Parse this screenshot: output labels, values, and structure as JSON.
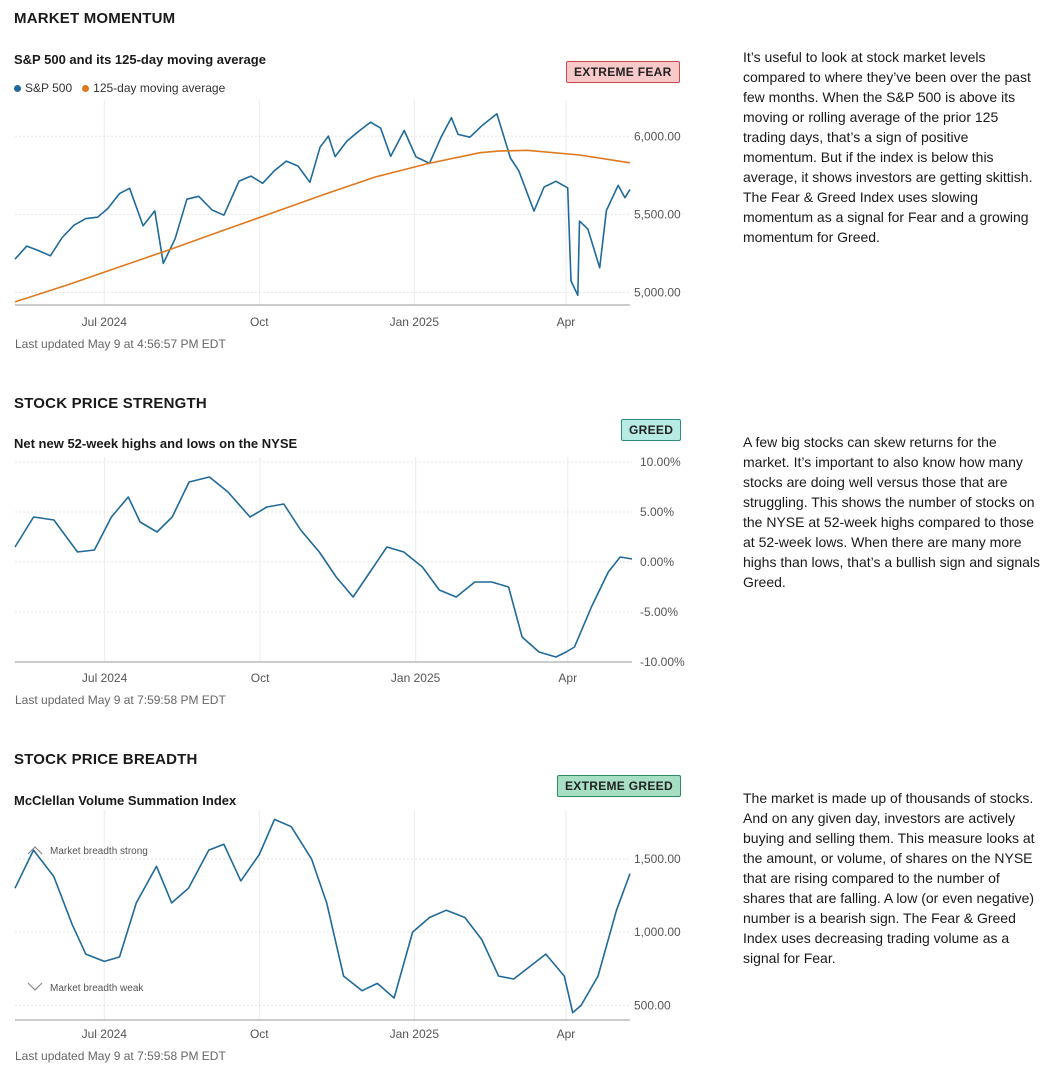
{
  "sections": [
    {
      "title": "MARKET MOMENTUM",
      "subtitle": "S&P 500 and its 125-day moving average",
      "badge": "EXTREME FEAR",
      "legend": [
        "S&P 500",
        "125-day moving average"
      ],
      "description": "It’s useful to look at stock market levels compared to where they’ve been over the past few months. When the S&P 500 is above its moving or rolling average of the prior 125 trading days, that’s a sign of positive momentum. But if the index is below this average, it shows investors are getting skittish. The Fear & Greed Index uses slowing momentum as a signal for Fear and a growing momentum for Greed.",
      "updated": "Last updated May 9 at 4:56:57 PM EDT"
    },
    {
      "title": "STOCK PRICE STRENGTH",
      "subtitle": "Net new 52-week highs and lows on the NYSE",
      "badge": "GREED",
      "description": "A few big stocks can skew returns for the market. It’s important to also know how many stocks are doing well versus those that are struggling. This shows the number of stocks on the NYSE at 52-week highs compared to those at 52-week lows. When there are many more highs than lows, that’s a bullish sign and signals Greed.",
      "updated": "Last updated May 9 at 7:59:58 PM EDT"
    },
    {
      "title": "STOCK PRICE BREADTH",
      "subtitle": "McClellan Volume Summation Index",
      "badge": "EXTREME GREED",
      "description": "The market is made up of thousands of stocks. And on any given day, investors are actively buying and selling them. This measure looks at the amount, or volume, of shares on the NYSE that are rising compared to the number of shares that are falling. A low (or even negative) number is a bearish sign. The Fear & Greed Index uses decreasing trading volume as a signal for Fear.",
      "updated": "Last updated May 9 at 7:59:58 PM EDT"
    }
  ],
  "colors": {
    "spx": "#1f6a9a",
    "ma": "#e0781e",
    "fear_bg": "#f8c9c9",
    "fear_border": "#c94a4a",
    "greed_bg": "#b7ebe4",
    "greed_border": "#2e8b7e",
    "xgreed_bg": "#a6dfc3",
    "xgreed_border": "#2e8b5e",
    "line": "#1f6a9a"
  },
  "chart_data": [
    {
      "type": "line",
      "title": "S&P 500 and its 125-day moving average",
      "x_ticks": [
        "Jul 2024",
        "Oct",
        "Jan 2025",
        "Apr"
      ],
      "y_ticks": [
        "6,000.00",
        "5,500.00",
        "5,000.00"
      ],
      "ylim": [
        4920,
        6200
      ],
      "series": [
        {
          "name": "S&P 500",
          "x": [
            "2024-05-09",
            "2024-05-16",
            "2024-05-23",
            "2024-05-30",
            "2024-06-06",
            "2024-06-13",
            "2024-06-20",
            "2024-06-27",
            "2024-07-03",
            "2024-07-10",
            "2024-07-16",
            "2024-07-24",
            "2024-07-31",
            "2024-08-05",
            "2024-08-12",
            "2024-08-19",
            "2024-08-26",
            "2024-09-03",
            "2024-09-10",
            "2024-09-19",
            "2024-09-26",
            "2024-10-03",
            "2024-10-10",
            "2024-10-17",
            "2024-10-24",
            "2024-10-31",
            "2024-11-06",
            "2024-11-11",
            "2024-11-15",
            "2024-11-22",
            "2024-11-29",
            "2024-12-06",
            "2024-12-12",
            "2024-12-18",
            "2024-12-26",
            "2025-01-02",
            "2025-01-10",
            "2025-01-17",
            "2025-01-23",
            "2025-01-27",
            "2025-02-03",
            "2025-02-10",
            "2025-02-19",
            "2025-02-27",
            "2025-03-04",
            "2025-03-13",
            "2025-03-19",
            "2025-03-26",
            "2025-04-02",
            "2025-04-04",
            "2025-04-08",
            "2025-04-09",
            "2025-04-14",
            "2025-04-21",
            "2025-04-25",
            "2025-05-02",
            "2025-05-06",
            "2025-05-09"
          ],
          "y": [
            5214,
            5297,
            5268,
            5235,
            5352,
            5431,
            5473,
            5482,
            5537,
            5633,
            5667,
            5427,
            5522,
            5186,
            5344,
            5597,
            5616,
            5528,
            5495,
            5713,
            5745,
            5699,
            5780,
            5841,
            5809,
            5705,
            5929,
            6001,
            5870,
            5969,
            6032,
            6090,
            6052,
            5872,
            6037,
            5868,
            5827,
            5997,
            6119,
            6012,
            5994,
            6066,
            6144,
            5861,
            5779,
            5521,
            5675,
            5712,
            5670,
            5074,
            4982,
            5457,
            5406,
            5158,
            5525,
            5686,
            5607,
            5660
          ]
        },
        {
          "name": "125-day moving average",
          "x": [
            "2024-05-09",
            "2024-06-09",
            "2024-07-09",
            "2024-08-09",
            "2024-09-09",
            "2024-10-09",
            "2024-11-09",
            "2024-12-09",
            "2025-01-09",
            "2025-02-09",
            "2025-02-20",
            "2025-03-09",
            "2025-04-09",
            "2025-05-09"
          ],
          "y": [
            4940,
            5048,
            5160,
            5275,
            5395,
            5510,
            5630,
            5740,
            5825,
            5895,
            5905,
            5910,
            5880,
            5830
          ]
        }
      ]
    },
    {
      "type": "line",
      "title": "Net new 52-week highs and lows on the NYSE",
      "x_ticks": [
        "Jul 2024",
        "Oct",
        "Jan 2025",
        "Apr"
      ],
      "y_ticks": [
        "10.00%",
        "5.00%",
        "0.00%",
        "-5.00%",
        "-10.00%"
      ],
      "ylim": [
        -10,
        10
      ],
      "series": [
        {
          "x": [
            "2024-05-09",
            "2024-05-20",
            "2024-06-01",
            "2024-06-15",
            "2024-06-25",
            "2024-07-05",
            "2024-07-15",
            "2024-07-22",
            "2024-08-01",
            "2024-08-10",
            "2024-08-20",
            "2024-09-01",
            "2024-09-12",
            "2024-09-25",
            "2024-10-05",
            "2024-10-15",
            "2024-10-25",
            "2024-11-05",
            "2024-11-15",
            "2024-11-25",
            "2024-12-05",
            "2024-12-15",
            "2024-12-25",
            "2025-01-05",
            "2025-01-15",
            "2025-01-25",
            "2025-02-05",
            "2025-02-15",
            "2025-02-25",
            "2025-03-05",
            "2025-03-15",
            "2025-03-25",
            "2025-03-31",
            "2025-04-05",
            "2025-04-15",
            "2025-04-25",
            "2025-05-02",
            "2025-05-09"
          ],
          "y": [
            1.5,
            4.5,
            4.2,
            1.0,
            1.2,
            4.5,
            6.5,
            4.0,
            3.0,
            4.5,
            8.0,
            8.5,
            7.0,
            4.5,
            5.5,
            5.8,
            3.2,
            1.0,
            -1.5,
            -3.5,
            -1.0,
            1.5,
            1.0,
            -0.5,
            -2.8,
            -3.5,
            -2.0,
            -2.0,
            -2.5,
            -7.5,
            -9.0,
            -9.5,
            -9.0,
            -8.5,
            -4.5,
            -1.0,
            0.5,
            0.3
          ]
        }
      ]
    },
    {
      "type": "line",
      "title": "McClellan Volume Summation Index",
      "x_ticks": [
        "Jul 2024",
        "Oct",
        "Jan 2025",
        "Apr"
      ],
      "y_ticks": [
        "1,500.00",
        "1,000.00",
        "500.00"
      ],
      "annotations": [
        "Market breadth strong",
        "Market breadth weak"
      ],
      "ylim": [
        400,
        1800
      ],
      "series": [
        {
          "x": [
            "2024-05-09",
            "2024-05-20",
            "2024-06-01",
            "2024-06-12",
            "2024-06-20",
            "2024-07-01",
            "2024-07-10",
            "2024-07-20",
            "2024-08-01",
            "2024-08-10",
            "2024-08-20",
            "2024-09-01",
            "2024-09-10",
            "2024-09-20",
            "2024-10-01",
            "2024-10-10",
            "2024-10-20",
            "2024-11-01",
            "2024-11-10",
            "2024-11-20",
            "2024-12-01",
            "2024-12-10",
            "2024-12-20",
            "2024-12-31",
            "2025-01-10",
            "2025-01-20",
            "2025-01-31",
            "2025-02-10",
            "2025-02-20",
            "2025-03-01",
            "2025-03-10",
            "2025-03-20",
            "2025-03-31",
            "2025-04-05",
            "2025-04-10",
            "2025-04-20",
            "2025-05-01",
            "2025-05-09"
          ],
          "y": [
            1300,
            1560,
            1380,
            1050,
            850,
            800,
            830,
            1200,
            1450,
            1200,
            1300,
            1560,
            1600,
            1350,
            1530,
            1770,
            1720,
            1500,
            1200,
            700,
            600,
            650,
            550,
            1000,
            1100,
            1150,
            1100,
            950,
            700,
            680,
            760,
            850,
            700,
            450,
            500,
            700,
            1150,
            1400
          ]
        }
      ]
    }
  ]
}
